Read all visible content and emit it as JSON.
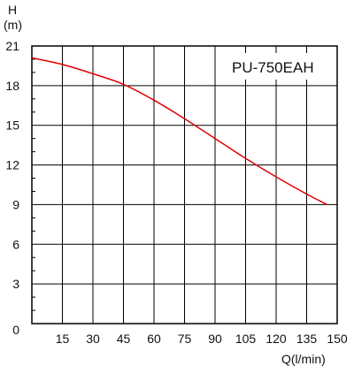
{
  "chart_data": {
    "type": "line",
    "annotation": "PU-750EAH",
    "ylabel_line1": "H",
    "ylabel_line2": "(m)",
    "xlabel": "Q(l/min)",
    "xlim": [
      0,
      150
    ],
    "ylim": [
      0,
      21
    ],
    "x_ticks": [
      15,
      30,
      45,
      60,
      75,
      90,
      105,
      120,
      135,
      150
    ],
    "y_ticks": [
      0,
      3,
      6,
      9,
      12,
      15,
      18,
      21
    ],
    "grid": true,
    "series": [
      {
        "color": "#e00000",
        "x": [
          0,
          15,
          30,
          45,
          60,
          75,
          90,
          105,
          120,
          135,
          145
        ],
        "y": [
          20.1,
          19.6,
          18.9,
          18.1,
          16.9,
          15.5,
          14.0,
          12.5,
          11.1,
          9.8,
          9.0
        ]
      }
    ]
  }
}
